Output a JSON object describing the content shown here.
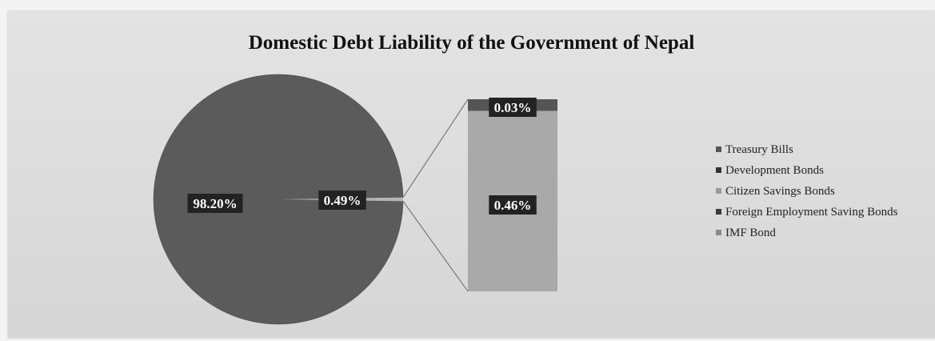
{
  "chart_data": {
    "type": "bar-of-pie",
    "title": "Domestic Debt Liability of the Government of Nepal",
    "main_pie": {
      "slices": [
        {
          "label": "98.20%",
          "value": 98.2,
          "series": "Treasury Bills"
        },
        {
          "label": "0.49%",
          "value": 0.49,
          "series": "Other (exploded to bar)"
        }
      ]
    },
    "secondary_bar": {
      "segments": [
        {
          "label": "0.03%",
          "value": 0.03
        },
        {
          "label": "0.46%",
          "value": 0.46
        }
      ]
    },
    "legend": {
      "position": "right",
      "items": [
        {
          "name": "Treasury Bills",
          "color": "#555555"
        },
        {
          "name": "Development Bonds",
          "color": "#333333"
        },
        {
          "name": "Citizen Savings Bonds",
          "color": "#9a9a9a"
        },
        {
          "name": "Foreign Employment Saving Bonds",
          "color": "#3a3a3a"
        },
        {
          "name": "IMF Bond",
          "color": "#8a8a8a"
        }
      ]
    },
    "colors": {
      "pie_main": "#5b5b5b",
      "pie_small": "#b5b5b5",
      "bar_top": "#555555",
      "bar_bottom": "#a9a9a9",
      "label_bg": "#222222",
      "label_text": "#ffffff",
      "connector": "#666666"
    }
  }
}
